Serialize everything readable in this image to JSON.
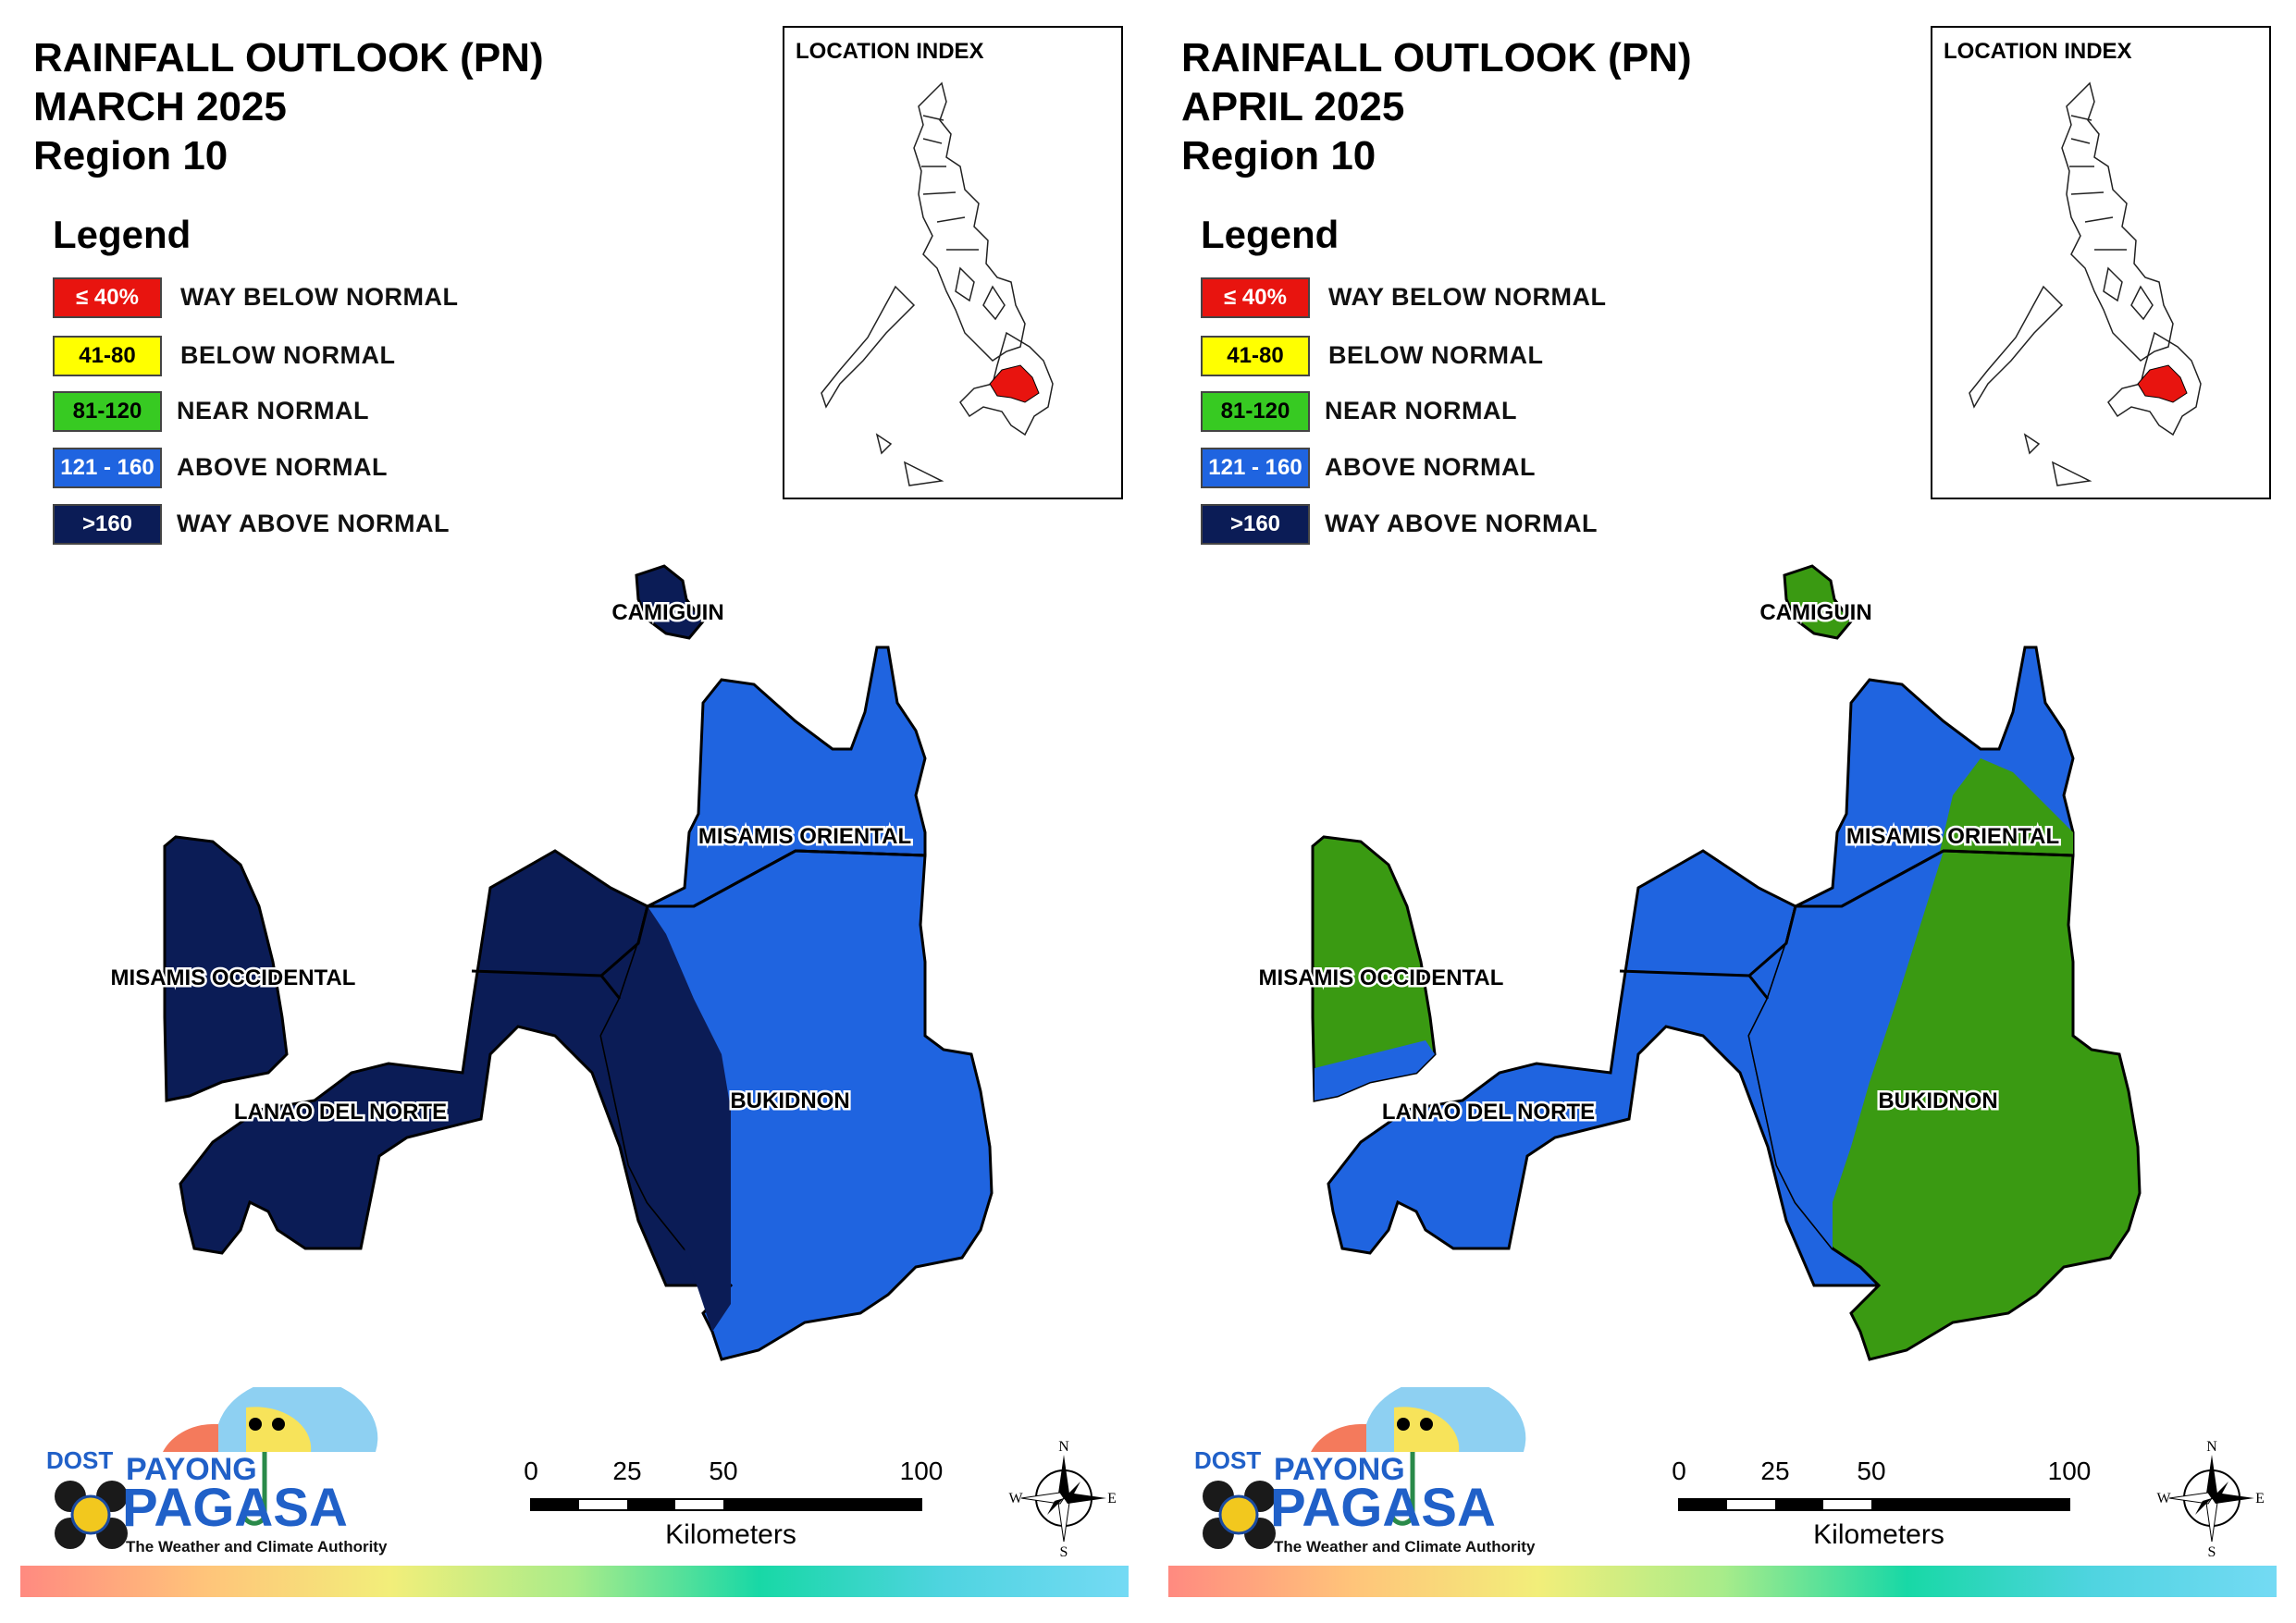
{
  "legend": {
    "title": "Legend",
    "items": [
      {
        "range": "≤ 40%",
        "label": "WAY BELOW NORMAL",
        "color": "#e8140f",
        "text_color": "#ffffff"
      },
      {
        "range": "41-80",
        "label": "BELOW NORMAL",
        "color": "#ffff00",
        "text_color": "#000000"
      },
      {
        "range": "81-120",
        "label": "NEAR NORMAL",
        "color": "#37ca22",
        "text_color": "#000000"
      },
      {
        "range": "121 - 160",
        "label": "ABOVE NORMAL",
        "color": "#1f64e0",
        "text_color": "#ffffff"
      },
      {
        "range": ">160",
        "label": "WAY ABOVE NORMAL",
        "color": "#0b1c56",
        "text_color": "#ffffff"
      }
    ]
  },
  "location_index": {
    "label": "LOCATION INDEX",
    "highlight_color": "#e8140f"
  },
  "provinces": {
    "camiguin": "CAMIGUIN",
    "misamis_oriental": "MISAMIS ORIENTAL",
    "misamis_occidental": "MISAMIS OCCIDENTAL",
    "lanao_del_norte": "LANAO DEL NORTE",
    "bukidnon": "BUKIDNON"
  },
  "panels": [
    {
      "title_line1": "RAINFALL OUTLOOK (PN)",
      "title_line2": "MARCH 2025",
      "title_line3": "Region 10",
      "colors": {
        "camiguin": "#0b1c56",
        "misamis_occidental": "#0b1c56",
        "lanao_del_norte": "#0b1c56",
        "misamis_oriental": "#1f64e0",
        "bukidnon": "#1f64e0",
        "bukidnon_west": "#0b1c56"
      }
    },
    {
      "title_line1": "RAINFALL OUTLOOK (PN)",
      "title_line2": "APRIL 2025",
      "title_line3": "Region 10",
      "colors": {
        "camiguin": "#3a9a12",
        "misamis_occidental": "#3a9a12",
        "lanao_del_norte": "#1f64e0",
        "misamis_oriental": "#1f64e0",
        "bukidnon": "#3a9a12",
        "bukidnon_west": "#1f64e0"
      }
    }
  ],
  "logo": {
    "dost": "DOST",
    "payong": "PAYONG",
    "pagasa": "PAGASA",
    "tagline": "The Weather and Climate Authority"
  },
  "scale": {
    "ticks": [
      "0",
      "25",
      "50",
      "100"
    ],
    "unit": "Kilometers"
  },
  "compass": {
    "n": "N",
    "s": "S",
    "e": "E",
    "w": "W"
  }
}
